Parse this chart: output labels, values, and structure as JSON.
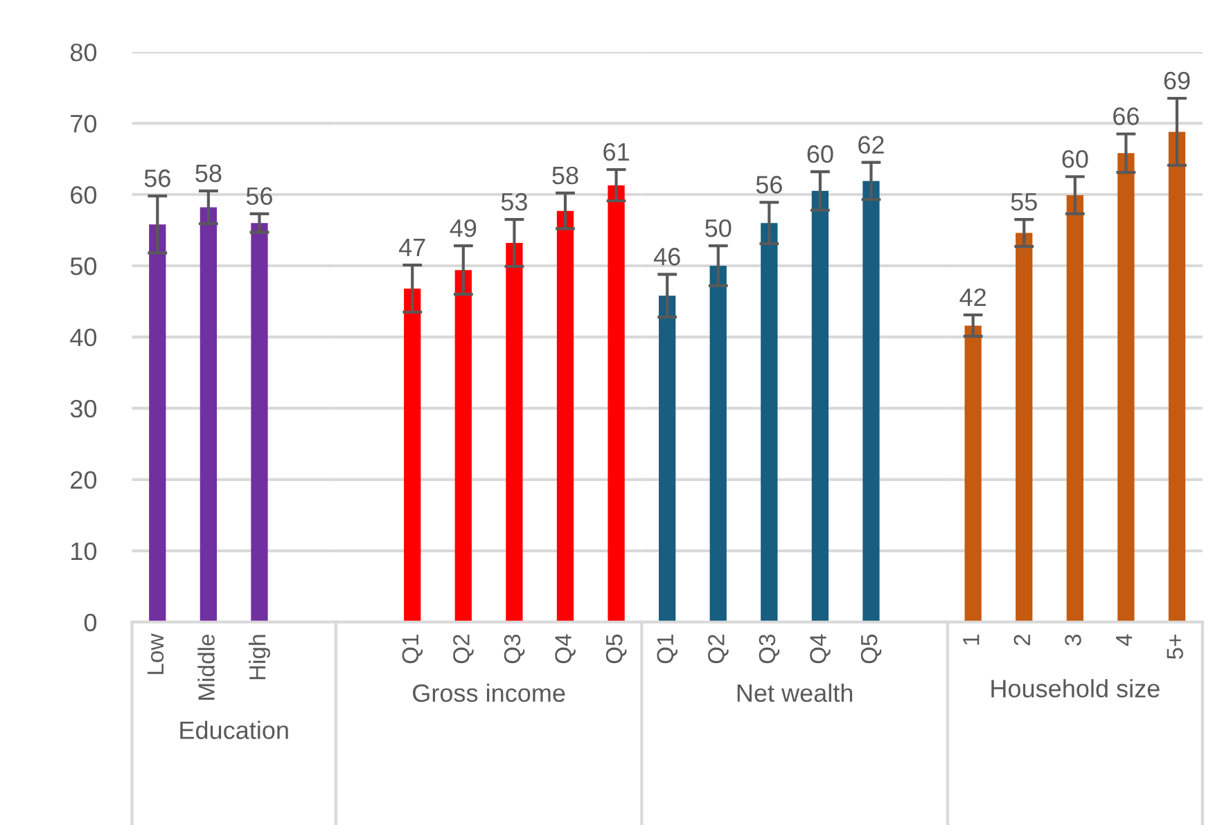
{
  "chart_data": [
    {
      "type": "bar",
      "xlabel": "Education",
      "categories": [
        "Low",
        "Middle",
        "High",
        null
      ],
      "values": [
        55.8,
        58.2,
        56.0,
        null
      ],
      "errors": [
        4.0,
        2.3,
        1.3,
        null
      ],
      "value_labels": [
        "56",
        "58",
        "56",
        null
      ],
      "color": "#7030a0",
      "ylim": [
        0,
        80
      ],
      "yticks": [
        0,
        10,
        20,
        30,
        40,
        50,
        60,
        70,
        80
      ],
      "grid": "y"
    },
    {
      "type": "bar",
      "xlabel": "Gross income",
      "categories": [
        null,
        "Q1",
        "Q2",
        "Q3",
        "Q4",
        "Q5"
      ],
      "values": [
        null,
        46.8,
        49.4,
        53.2,
        57.7,
        61.3
      ],
      "errors": [
        null,
        3.3,
        3.4,
        3.3,
        2.5,
        2.2
      ],
      "value_labels": [
        null,
        "47",
        "49",
        "53",
        "58",
        "61"
      ],
      "color": "#ff0000",
      "ylim": [
        0,
        80
      ],
      "yticks": [
        0,
        10,
        20,
        30,
        40,
        50,
        60,
        70,
        80
      ],
      "grid": "y",
      "tick_labels": "x"
    },
    {
      "type": "bar",
      "xlabel": "Net wealth",
      "categories": [
        "Q1",
        "Q2",
        "Q3",
        "Q4",
        "Q5",
        null
      ],
      "values": [
        45.8,
        50.0,
        56.0,
        60.5,
        61.9,
        null
      ],
      "errors": [
        3.0,
        2.8,
        2.9,
        2.7,
        2.6,
        null
      ],
      "value_labels": [
        "46",
        "50",
        "56",
        "60",
        "62",
        null
      ],
      "color": "#175e80",
      "ylim": [
        0,
        80
      ],
      "yticks": [
        0,
        10,
        20,
        30,
        40,
        50,
        60,
        70,
        80
      ],
      "grid": "y",
      "tick_labels": "x"
    },
    {
      "type": "bar",
      "xlabel": "Household size",
      "categories": [
        "1",
        "2",
        "3",
        "4",
        "5+"
      ],
      "values": [
        41.6,
        54.6,
        59.9,
        65.8,
        68.8
      ],
      "errors": [
        1.5,
        1.9,
        2.6,
        2.7,
        4.7
      ],
      "value_labels": [
        "42",
        "55",
        "60",
        "66",
        "69"
      ],
      "color": "#c55a11",
      "ylim": [
        0,
        80
      ],
      "yticks": [
        0,
        10,
        20,
        30,
        40,
        50,
        60,
        70,
        80
      ],
      "grid": "y",
      "tick_labels": "x"
    }
  ]
}
